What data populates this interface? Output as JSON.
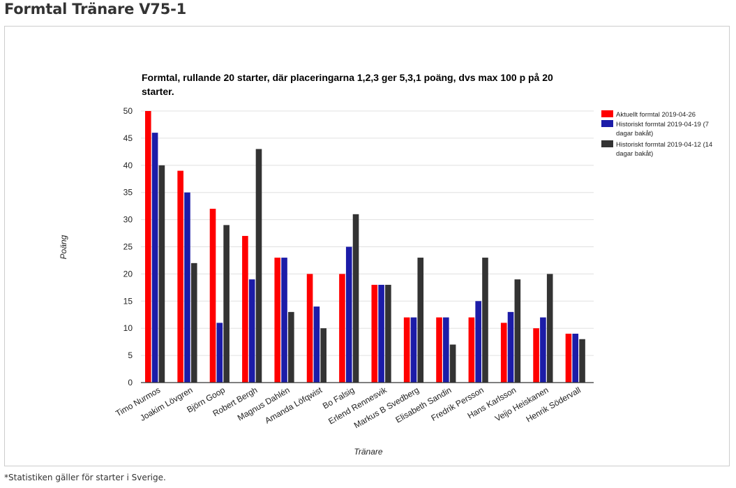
{
  "page": {
    "title": "Formtal Tränare V75-1",
    "footnote": "*Statistiken gäller för starter i Sverige."
  },
  "colors": {
    "series": [
      "#ff0000",
      "#1c1ca8",
      "#333333"
    ],
    "grid": "#e0e0e0",
    "axis": "#333333"
  },
  "chart_data": {
    "type": "bar",
    "title_lines": [
      "Formtal, rullande 20 starter, där placeringarna 1,2,3 ger 5,3,1 poäng, dvs max 100 p på 20",
      "starter."
    ],
    "xlabel": "Tränare",
    "ylabel": "Poäng",
    "ylim": [
      0,
      50
    ],
    "yticks": [
      0,
      5,
      10,
      15,
      20,
      25,
      30,
      35,
      40,
      45,
      50
    ],
    "grid": true,
    "legend_position": "right",
    "categories": [
      "Timo Nurmos",
      "Joakim Lövgren",
      "Björn Goop",
      "Robert Bergh",
      "Magnus Dahlén",
      "Amanda Löfqwist",
      "Bo Falsig",
      "Erlend Rennesvik",
      "Markus B Svedberg",
      "Elisabeth Sandin",
      "Fredrik Persson",
      "Hans Karlsson",
      "Veijo Heiskanen",
      "Henrik Södervall"
    ],
    "series": [
      {
        "name_lines": [
          "Aktuellt formtal 2019-04-26"
        ],
        "values": [
          50,
          39,
          32,
          27,
          23,
          20,
          20,
          18,
          12,
          12,
          12,
          11,
          10,
          9
        ]
      },
      {
        "name_lines": [
          "Historiskt formtal 2019-04-19 (7",
          "dagar bakåt)"
        ],
        "values": [
          46,
          35,
          11,
          19,
          23,
          14,
          25,
          18,
          12,
          12,
          15,
          13,
          12,
          9
        ]
      },
      {
        "name_lines": [
          "Historiskt formtal 2019-04-12 (14",
          "dagar bakåt)"
        ],
        "values": [
          40,
          22,
          29,
          43,
          13,
          10,
          31,
          18,
          23,
          7,
          23,
          19,
          20,
          8
        ]
      }
    ]
  }
}
